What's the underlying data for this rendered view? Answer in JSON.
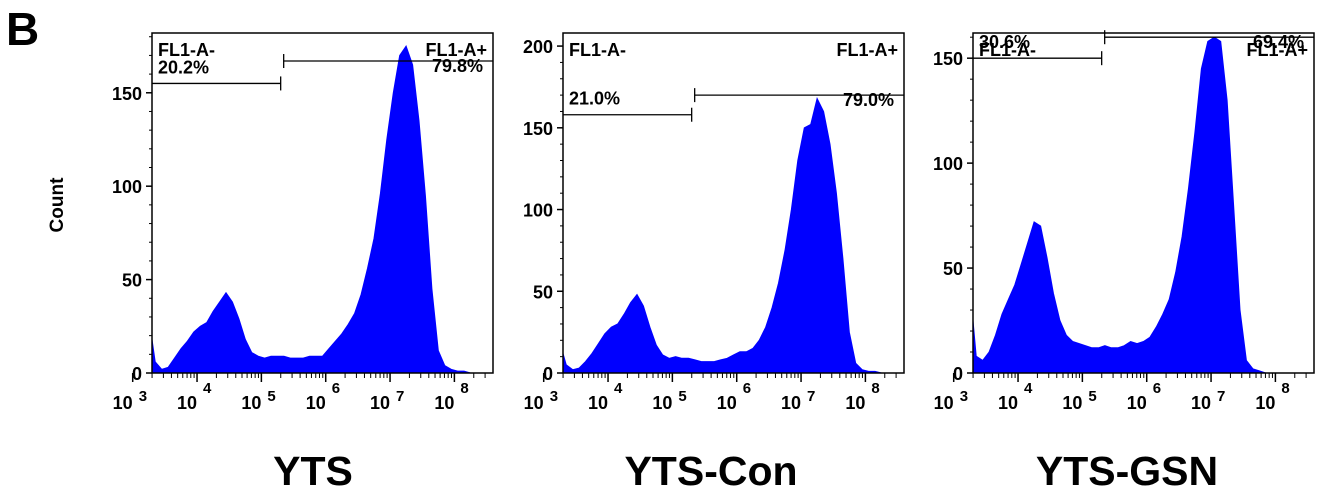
{
  "figure": {
    "panel_letter": "B",
    "y_axis_label": "Count"
  },
  "chart_data": [
    {
      "type": "area",
      "title": "YTS",
      "ylabel": "Count",
      "xlabel": "",
      "x_scale": "log",
      "xlim": [
        3.3,
        8.6
      ],
      "ylim": [
        0,
        182
      ],
      "yticks": [
        0,
        50,
        100,
        150
      ],
      "xticks": [
        {
          "base": "10",
          "exp": "3",
          "value": 3
        },
        {
          "base": "10",
          "exp": "4",
          "value": 4
        },
        {
          "base": "10",
          "exp": "5",
          "value": 5
        },
        {
          "base": "10",
          "exp": "6",
          "value": 6
        },
        {
          "base": "10",
          "exp": "7",
          "value": 7
        },
        {
          "base": "10",
          "exp": "8",
          "value": 8
        }
      ],
      "gates": [
        {
          "label": "FL1-A-",
          "percent": "20.2%",
          "x_range": [
            3.3,
            5.3
          ],
          "y_level": 155
        },
        {
          "label": "FL1-A+",
          "percent": "79.8%",
          "x_range": [
            5.3,
            8.6
          ],
          "y_level": 167
        }
      ],
      "x": [
        3.3,
        3.35,
        3.45,
        3.55,
        3.65,
        3.75,
        3.85,
        3.95,
        4.05,
        4.15,
        4.25,
        4.35,
        4.45,
        4.55,
        4.65,
        4.75,
        4.85,
        4.95,
        5.05,
        5.15,
        5.25,
        5.35,
        5.45,
        5.55,
        5.65,
        5.75,
        5.85,
        5.95,
        6.05,
        6.15,
        6.25,
        6.35,
        6.45,
        6.55,
        6.65,
        6.75,
        6.85,
        6.95,
        7.05,
        7.15,
        7.25,
        7.35,
        7.45,
        7.55,
        7.65,
        7.75,
        7.85,
        7.95,
        8.05,
        8.15,
        8.25,
        8.35,
        8.45,
        8.55
      ],
      "y": [
        18,
        6,
        2,
        3,
        8,
        13,
        17,
        22,
        25,
        27,
        33,
        38,
        43,
        38,
        29,
        18,
        11,
        9,
        8,
        9,
        9,
        9,
        8,
        8,
        8,
        9,
        9,
        9,
        13,
        17,
        21,
        26,
        32,
        42,
        56,
        72,
        96,
        125,
        150,
        170,
        175,
        165,
        135,
        95,
        45,
        12,
        4,
        2,
        1,
        1,
        0,
        0,
        0,
        0
      ],
      "color": "#0000ff"
    },
    {
      "type": "area",
      "title": "YTS-Con",
      "ylabel": "",
      "xlabel": "",
      "x_scale": "log",
      "xlim": [
        3.3,
        8.6
      ],
      "ylim": [
        0,
        208
      ],
      "yticks": [
        0,
        50,
        100,
        150,
        200
      ],
      "xticks": [
        {
          "base": "10",
          "exp": "3",
          "value": 3
        },
        {
          "base": "10",
          "exp": "4",
          "value": 4
        },
        {
          "base": "10",
          "exp": "5",
          "value": 5
        },
        {
          "base": "10",
          "exp": "6",
          "value": 6
        },
        {
          "base": "10",
          "exp": "7",
          "value": 7
        },
        {
          "base": "10",
          "exp": "8",
          "value": 8
        }
      ],
      "gates": [
        {
          "label": "FL1-A-",
          "percent": "21.0%",
          "x_range": [
            3.3,
            5.3
          ],
          "y_level": 158
        },
        {
          "label": "FL1-A+",
          "percent": "79.0%",
          "x_range": [
            5.3,
            8.6
          ],
          "y_level": 170
        }
      ],
      "x": [
        3.3,
        3.35,
        3.45,
        3.55,
        3.65,
        3.75,
        3.85,
        3.95,
        4.05,
        4.15,
        4.25,
        4.35,
        4.45,
        4.55,
        4.65,
        4.75,
        4.85,
        4.95,
        5.05,
        5.15,
        5.25,
        5.35,
        5.45,
        5.55,
        5.65,
        5.75,
        5.85,
        5.95,
        6.05,
        6.15,
        6.25,
        6.35,
        6.45,
        6.55,
        6.65,
        6.75,
        6.85,
        6.95,
        7.05,
        7.15,
        7.25,
        7.35,
        7.45,
        7.55,
        7.65,
        7.75,
        7.85,
        7.95,
        8.05,
        8.15,
        8.25,
        8.35,
        8.45,
        8.55
      ],
      "y": [
        12,
        5,
        2,
        3,
        7,
        12,
        18,
        24,
        28,
        30,
        36,
        43,
        48,
        41,
        28,
        17,
        11,
        9,
        10,
        9,
        9,
        8,
        7,
        7,
        7,
        8,
        9,
        11,
        13,
        13,
        15,
        20,
        28,
        40,
        55,
        75,
        100,
        130,
        150,
        152,
        168,
        160,
        140,
        110,
        70,
        25,
        6,
        2,
        1,
        1,
        0,
        0,
        0,
        0
      ],
      "color": "#0000ff"
    },
    {
      "type": "area",
      "title": "YTS-GSN",
      "ylabel": "",
      "xlabel": "",
      "x_scale": "log",
      "xlim": [
        3.3,
        8.6
      ],
      "ylim": [
        0,
        162
      ],
      "yticks": [
        0,
        50,
        100,
        150
      ],
      "xticks": [
        {
          "base": "10",
          "exp": "3",
          "value": 3
        },
        {
          "base": "10",
          "exp": "4",
          "value": 4
        },
        {
          "base": "10",
          "exp": "5",
          "value": 5
        },
        {
          "base": "10",
          "exp": "6",
          "value": 6
        },
        {
          "base": "10",
          "exp": "7",
          "value": 7
        },
        {
          "base": "10",
          "exp": "8",
          "value": 8
        }
      ],
      "gates": [
        {
          "label": "FL1-A-",
          "percent": "30.6%",
          "x_range": [
            3.3,
            5.3
          ],
          "y_level": 150
        },
        {
          "label": "FL1-A+",
          "percent": "69.4%",
          "x_range": [
            5.3,
            8.6
          ],
          "y_level": 160
        }
      ],
      "x": [
        3.3,
        3.35,
        3.45,
        3.55,
        3.65,
        3.75,
        3.85,
        3.95,
        4.05,
        4.15,
        4.25,
        4.35,
        4.45,
        4.55,
        4.65,
        4.75,
        4.85,
        4.95,
        5.05,
        5.15,
        5.25,
        5.35,
        5.45,
        5.55,
        5.65,
        5.75,
        5.85,
        5.95,
        6.05,
        6.15,
        6.25,
        6.35,
        6.45,
        6.55,
        6.65,
        6.75,
        6.85,
        6.95,
        7.05,
        7.15,
        7.25,
        7.35,
        7.45,
        7.55,
        7.65,
        7.75,
        7.85,
        7.95,
        8.05,
        8.15,
        8.25,
        8.35,
        8.45,
        8.55
      ],
      "y": [
        25,
        8,
        6,
        10,
        18,
        28,
        35,
        42,
        52,
        62,
        72,
        70,
        55,
        38,
        25,
        18,
        15,
        14,
        13,
        12,
        12,
        13,
        12,
        12,
        13,
        15,
        14,
        15,
        17,
        22,
        28,
        35,
        48,
        65,
        88,
        115,
        145,
        158,
        160,
        158,
        130,
        80,
        30,
        6,
        2,
        1,
        0,
        0,
        0,
        0,
        0,
        0,
        0,
        0
      ],
      "color": "#0000ff"
    }
  ]
}
